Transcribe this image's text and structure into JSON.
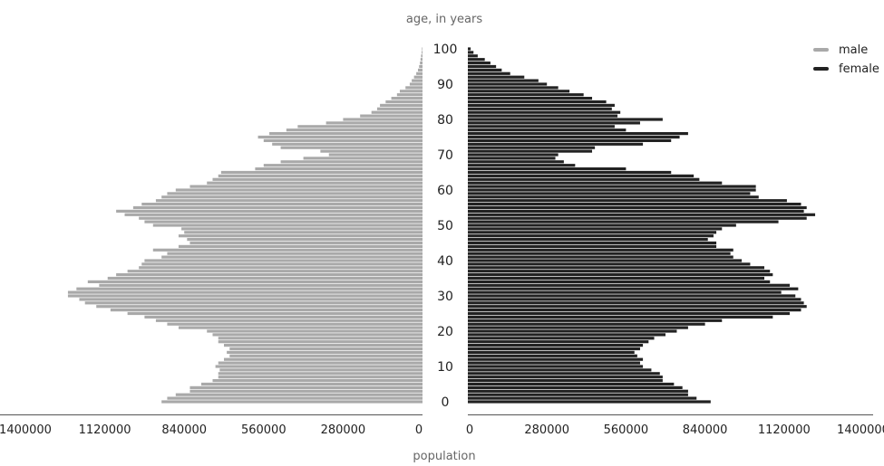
{
  "chart_data": {
    "type": "bar",
    "orientation": "horizontal-pyramid",
    "ylabel": "age, in years",
    "xlabel": "population",
    "x_ticks": [
      "1400000",
      "1120000",
      "840000",
      "560000",
      "280000",
      "0"
    ],
    "x_ticks_right": [
      "0",
      "280000",
      "560000",
      "840000",
      "1120000",
      "1400000"
    ],
    "age_ticks": [
      "0",
      "10",
      "20",
      "30",
      "40",
      "50",
      "60",
      "70",
      "80",
      "90",
      "100"
    ],
    "xlim": [
      0,
      1400000
    ],
    "ylim": [
      0,
      100
    ],
    "legend_position": "top-right",
    "colors": {
      "male": "#a9a9a9",
      "female": "#222222"
    },
    "ages": [
      0,
      1,
      2,
      3,
      4,
      5,
      6,
      7,
      8,
      9,
      10,
      11,
      12,
      13,
      14,
      15,
      16,
      17,
      18,
      19,
      20,
      21,
      22,
      23,
      24,
      25,
      26,
      27,
      28,
      29,
      30,
      31,
      32,
      33,
      34,
      35,
      36,
      37,
      38,
      39,
      40,
      41,
      42,
      43,
      44,
      45,
      46,
      47,
      48,
      49,
      50,
      51,
      52,
      53,
      54,
      55,
      56,
      57,
      58,
      59,
      60,
      61,
      62,
      63,
      64,
      65,
      66,
      67,
      68,
      69,
      70,
      71,
      72,
      73,
      74,
      75,
      76,
      77,
      78,
      79,
      80,
      81,
      82,
      83,
      84,
      85,
      86,
      87,
      88,
      89,
      90,
      91,
      92,
      93,
      94,
      95,
      96,
      97,
      98,
      99,
      100
    ],
    "series": [
      {
        "name": "male",
        "values": [
          920000,
          900000,
          870000,
          820000,
          820000,
          780000,
          740000,
          720000,
          720000,
          715000,
          730000,
          720000,
          700000,
          680000,
          690000,
          680000,
          700000,
          720000,
          720000,
          740000,
          760000,
          860000,
          900000,
          940000,
          980000,
          1040000,
          1100000,
          1150000,
          1190000,
          1210000,
          1250000,
          1250000,
          1220000,
          1140000,
          1180000,
          1110000,
          1080000,
          1040000,
          1000000,
          990000,
          980000,
          920000,
          900000,
          950000,
          860000,
          820000,
          830000,
          860000,
          840000,
          850000,
          950000,
          980000,
          1000000,
          1050000,
          1080000,
          1020000,
          990000,
          940000,
          920000,
          900000,
          870000,
          820000,
          760000,
          740000,
          720000,
          710000,
          590000,
          560000,
          500000,
          420000,
          330000,
          360000,
          500000,
          530000,
          560000,
          580000,
          540000,
          480000,
          440000,
          340000,
          280000,
          220000,
          180000,
          160000,
          150000,
          130000,
          110000,
          90000,
          80000,
          60000,
          45000,
          38000,
          30000,
          22000,
          16000,
          12000,
          9000,
          7000,
          5000,
          3000,
          2000
        ]
      },
      {
        "name": "female",
        "values": [
          860000,
          810000,
          780000,
          780000,
          760000,
          730000,
          690000,
          690000,
          680000,
          650000,
          620000,
          610000,
          620000,
          600000,
          590000,
          610000,
          620000,
          640000,
          660000,
          700000,
          740000,
          780000,
          840000,
          900000,
          1080000,
          1140000,
          1180000,
          1200000,
          1190000,
          1180000,
          1160000,
          1110000,
          1170000,
          1140000,
          1070000,
          1050000,
          1080000,
          1070000,
          1050000,
          1000000,
          970000,
          940000,
          930000,
          940000,
          880000,
          880000,
          850000,
          870000,
          880000,
          900000,
          950000,
          1100000,
          1200000,
          1230000,
          1190000,
          1200000,
          1180000,
          1130000,
          1030000,
          1000000,
          1020000,
          1020000,
          900000,
          820000,
          800000,
          720000,
          560000,
          380000,
          340000,
          310000,
          320000,
          440000,
          450000,
          620000,
          720000,
          750000,
          780000,
          560000,
          520000,
          610000,
          690000,
          530000,
          540000,
          510000,
          520000,
          490000,
          440000,
          410000,
          360000,
          320000,
          280000,
          250000,
          200000,
          150000,
          120000,
          100000,
          80000,
          60000,
          35000,
          20000,
          10000
        ]
      }
    ]
  },
  "legend": {
    "male_label": "male",
    "female_label": "female"
  }
}
